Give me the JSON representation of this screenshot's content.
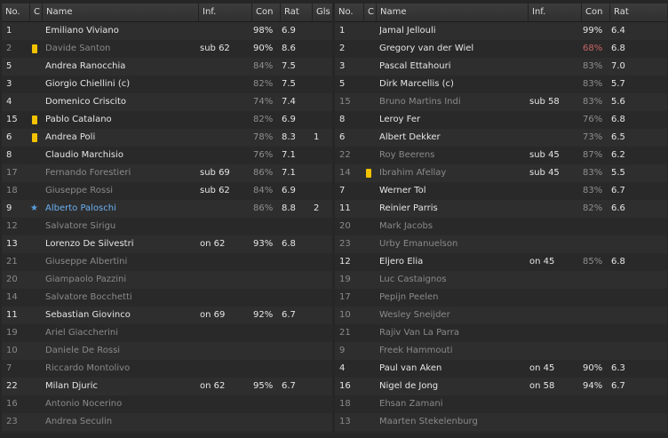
{
  "headers": {
    "no": "No.",
    "c": "C",
    "name": "Name",
    "inf": "Inf.",
    "con": "Con",
    "rat": "Rat",
    "gls": "Gls"
  },
  "left": [
    {
      "no": "1",
      "name": "Emiliano Viviano",
      "inf": "",
      "con": "98%",
      "rat": "6.9",
      "gls": "",
      "active": true
    },
    {
      "no": "2",
      "name": "Davide Santon",
      "inf": "sub 62",
      "con": "90%",
      "rat": "8.6",
      "gls": "",
      "active": false,
      "card": "yellow"
    },
    {
      "no": "5",
      "name": "Andrea Ranocchia",
      "inf": "",
      "con": "84%",
      "rat": "7.5",
      "gls": "",
      "active": true
    },
    {
      "no": "3",
      "name": "Giorgio Chiellini (c)",
      "inf": "",
      "con": "82%",
      "rat": "7.5",
      "gls": "",
      "active": true
    },
    {
      "no": "4",
      "name": "Domenico Criscito",
      "inf": "",
      "con": "74%",
      "rat": "7.4",
      "gls": "",
      "active": true
    },
    {
      "no": "15",
      "name": "Pablo Catalano",
      "inf": "",
      "con": "82%",
      "rat": "6.9",
      "gls": "",
      "active": true,
      "card": "yellow"
    },
    {
      "no": "6",
      "name": "Andrea Poli",
      "inf": "",
      "con": "78%",
      "rat": "8.3",
      "gls": "1",
      "active": true,
      "card": "yellow"
    },
    {
      "no": "8",
      "name": "Claudio Marchisio",
      "inf": "",
      "con": "76%",
      "rat": "7.1",
      "gls": "",
      "active": true
    },
    {
      "no": "17",
      "name": "Fernando Forestieri",
      "inf": "sub 69",
      "con": "86%",
      "rat": "7.1",
      "gls": "",
      "active": false
    },
    {
      "no": "18",
      "name": "Giuseppe Rossi",
      "inf": "sub 62",
      "con": "84%",
      "rat": "6.9",
      "gls": "",
      "active": false
    },
    {
      "no": "9",
      "name": "Alberto Paloschi",
      "inf": "",
      "con": "86%",
      "rat": "8.8",
      "gls": "2",
      "active": true,
      "star": true
    },
    {
      "no": "12",
      "name": "Salvatore Sirigu",
      "inf": "",
      "con": "",
      "rat": "",
      "gls": "",
      "active": false
    },
    {
      "no": "13",
      "name": "Lorenzo De Silvestri",
      "inf": "on 62",
      "con": "93%",
      "rat": "6.8",
      "gls": "",
      "active": true
    },
    {
      "no": "21",
      "name": "Giuseppe Albertini",
      "inf": "",
      "con": "",
      "rat": "",
      "gls": "",
      "active": false
    },
    {
      "no": "20",
      "name": "Giampaolo Pazzini",
      "inf": "",
      "con": "",
      "rat": "",
      "gls": "",
      "active": false
    },
    {
      "no": "14",
      "name": "Salvatore Bocchetti",
      "inf": "",
      "con": "",
      "rat": "",
      "gls": "",
      "active": false
    },
    {
      "no": "11",
      "name": "Sebastian Giovinco",
      "inf": "on 69",
      "con": "92%",
      "rat": "6.7",
      "gls": "",
      "active": true
    },
    {
      "no": "19",
      "name": "Ariel Giaccherini",
      "inf": "",
      "con": "",
      "rat": "",
      "gls": "",
      "active": false
    },
    {
      "no": "10",
      "name": "Daniele De Rossi",
      "inf": "",
      "con": "",
      "rat": "",
      "gls": "",
      "active": false
    },
    {
      "no": "7",
      "name": "Riccardo Montolivo",
      "inf": "",
      "con": "",
      "rat": "",
      "gls": "",
      "active": false
    },
    {
      "no": "22",
      "name": "Milan Djuric",
      "inf": "on 62",
      "con": "95%",
      "rat": "6.7",
      "gls": "",
      "active": true
    },
    {
      "no": "16",
      "name": "Antonio Nocerino",
      "inf": "",
      "con": "",
      "rat": "",
      "gls": "",
      "active": false
    },
    {
      "no": "23",
      "name": "Andrea Seculin",
      "inf": "",
      "con": "",
      "rat": "",
      "gls": "",
      "active": false
    }
  ],
  "right": [
    {
      "no": "1",
      "name": "Jamal Jellouli",
      "inf": "",
      "con": "99%",
      "rat": "6.4",
      "gls": "",
      "active": true
    },
    {
      "no": "2",
      "name": "Gregory van der Wiel",
      "inf": "",
      "con": "68%",
      "rat": "6.8",
      "gls": "",
      "active": true,
      "conRed": true
    },
    {
      "no": "3",
      "name": "Pascal Ettahouri",
      "inf": "",
      "con": "83%",
      "rat": "7.0",
      "gls": "",
      "active": true
    },
    {
      "no": "5",
      "name": "Dirk Marcellis (c)",
      "inf": "",
      "con": "83%",
      "rat": "5.7",
      "gls": "",
      "active": true
    },
    {
      "no": "15",
      "name": "Bruno Martins Indi",
      "inf": "sub 58",
      "con": "83%",
      "rat": "5.6",
      "gls": "",
      "active": false
    },
    {
      "no": "8",
      "name": "Leroy Fer",
      "inf": "",
      "con": "76%",
      "rat": "6.8",
      "gls": "",
      "active": true
    },
    {
      "no": "6",
      "name": "Albert Dekker",
      "inf": "",
      "con": "73%",
      "rat": "6.5",
      "gls": "",
      "active": true
    },
    {
      "no": "22",
      "name": "Roy Beerens",
      "inf": "sub 45",
      "con": "87%",
      "rat": "6.2",
      "gls": "",
      "active": false
    },
    {
      "no": "14",
      "name": "Ibrahim Afellay",
      "inf": "sub 45",
      "con": "83%",
      "rat": "5.5",
      "gls": "",
      "active": false,
      "card": "yellow"
    },
    {
      "no": "7",
      "name": "Werner Tol",
      "inf": "",
      "con": "83%",
      "rat": "6.7",
      "gls": "",
      "active": true
    },
    {
      "no": "11",
      "name": "Reinier Parris",
      "inf": "",
      "con": "82%",
      "rat": "6.6",
      "gls": "",
      "active": true
    },
    {
      "no": "20",
      "name": "Mark Jacobs",
      "inf": "",
      "con": "",
      "rat": "",
      "gls": "",
      "active": false
    },
    {
      "no": "23",
      "name": "Urby Emanuelson",
      "inf": "",
      "con": "",
      "rat": "",
      "gls": "",
      "active": false
    },
    {
      "no": "12",
      "name": "Eljero Elia",
      "inf": "on 45",
      "con": "85%",
      "rat": "6.8",
      "gls": "",
      "active": true
    },
    {
      "no": "19",
      "name": "Luc Castaignos",
      "inf": "",
      "con": "",
      "rat": "",
      "gls": "",
      "active": false
    },
    {
      "no": "17",
      "name": "Pepijn Peelen",
      "inf": "",
      "con": "",
      "rat": "",
      "gls": "",
      "active": false
    },
    {
      "no": "10",
      "name": "Wesley Sneijder",
      "inf": "",
      "con": "",
      "rat": "",
      "gls": "",
      "active": false
    },
    {
      "no": "21",
      "name": "Rajiv Van La Parra",
      "inf": "",
      "con": "",
      "rat": "",
      "gls": "",
      "active": false
    },
    {
      "no": "9",
      "name": "Freek Hammouti",
      "inf": "",
      "con": "",
      "rat": "",
      "gls": "",
      "active": false
    },
    {
      "no": "4",
      "name": "Paul van Aken",
      "inf": "on 45",
      "con": "90%",
      "rat": "6.3",
      "gls": "",
      "active": true
    },
    {
      "no": "16",
      "name": "Nigel de Jong",
      "inf": "on 58",
      "con": "94%",
      "rat": "6.7",
      "gls": "",
      "active": true
    },
    {
      "no": "18",
      "name": "Ehsan Zamani",
      "inf": "",
      "con": "",
      "rat": "",
      "gls": "",
      "active": false
    },
    {
      "no": "13",
      "name": "Maarten Stekelenburg",
      "inf": "",
      "con": "",
      "rat": "",
      "gls": "",
      "active": false
    }
  ]
}
